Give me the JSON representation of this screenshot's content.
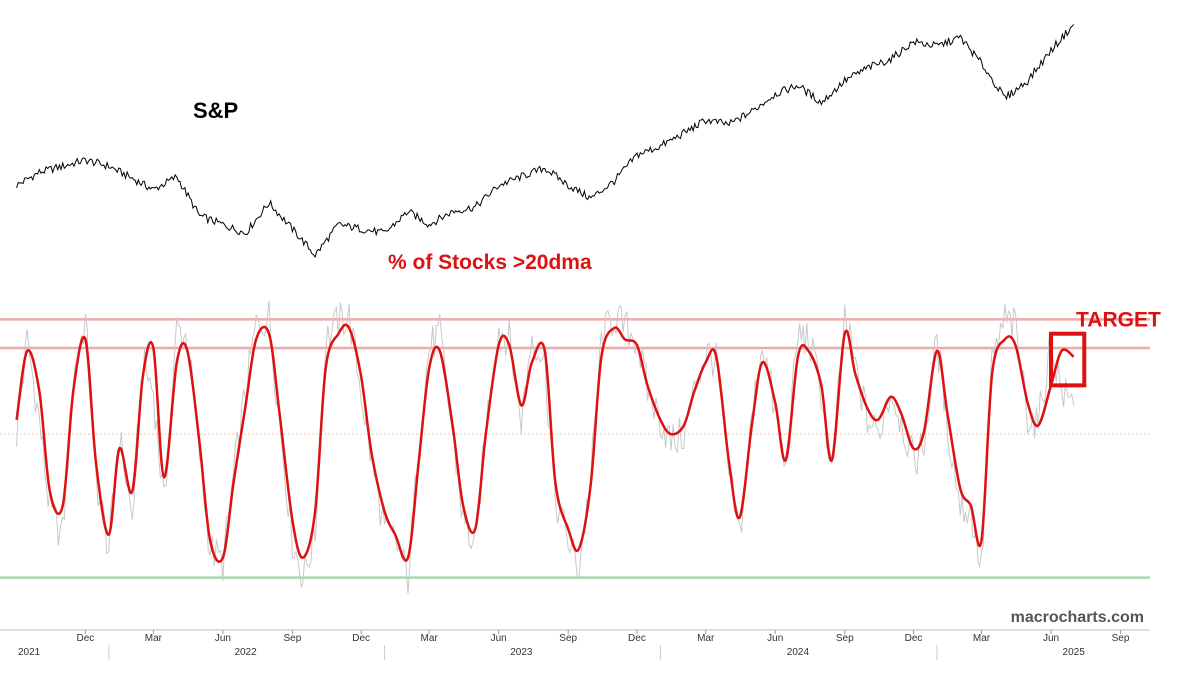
{
  "chart_data": {
    "type": "line",
    "top_panel": {
      "label": "S&P",
      "series": [
        {
          "name": "S&P",
          "color": "#000000",
          "x": [
            "2021-09-01",
            "2021-10-01",
            "2021-11-01",
            "2021-12-01",
            "2022-01-01",
            "2022-02-01",
            "2022-03-01",
            "2022-04-01",
            "2022-05-01",
            "2022-06-01",
            "2022-07-01",
            "2022-08-01",
            "2022-09-01",
            "2022-10-01",
            "2022-11-01",
            "2022-12-01",
            "2023-01-01",
            "2023-02-01",
            "2023-03-01",
            "2023-04-01",
            "2023-05-01",
            "2023-06-01",
            "2023-07-01",
            "2023-08-01",
            "2023-09-01",
            "2023-10-01",
            "2023-11-01",
            "2023-12-01",
            "2024-01-01",
            "2024-02-01",
            "2024-03-01",
            "2024-04-01",
            "2024-05-01",
            "2024-06-01",
            "2024-07-01",
            "2024-08-01",
            "2024-09-01",
            "2024-10-01",
            "2024-11-01",
            "2024-12-01",
            "2025-01-01",
            "2025-02-01",
            "2025-03-01",
            "2025-04-01",
            "2025-05-01",
            "2025-06-01",
            "2025-07-01"
          ],
          "values": [
            4400,
            4550,
            4620,
            4690,
            4620,
            4480,
            4350,
            4500,
            4050,
            3950,
            3850,
            4200,
            3900,
            3600,
            3950,
            3900,
            3850,
            4100,
            3950,
            4100,
            4150,
            4400,
            4500,
            4600,
            4400,
            4250,
            4450,
            4750,
            4850,
            5000,
            5150,
            5100,
            5250,
            5450,
            5550,
            5350,
            5600,
            5750,
            5850,
            6050,
            6000,
            6100,
            5800,
            5400,
            5600,
            5950,
            6250
          ]
        }
      ]
    },
    "bottom_panel": {
      "label": "% of Stocks >20dma",
      "reference_lines": [
        {
          "value": 95,
          "color": "#f0a8a8"
        },
        {
          "value": 85,
          "color": "#f0a8a8"
        },
        {
          "value": 55,
          "color": "#f6c6a0"
        },
        {
          "value": 5,
          "color": "#a8d8b0"
        }
      ],
      "series": [
        {
          "name": "% of Stocks >20dma (raw)",
          "color": "#c8c8c8",
          "x": [
            "2021-09-01",
            "2021-09-15",
            "2021-10-01",
            "2021-10-15",
            "2021-11-01",
            "2021-11-15",
            "2021-12-01",
            "2021-12-15",
            "2022-01-01",
            "2022-01-15",
            "2022-02-01",
            "2022-02-15",
            "2022-03-01",
            "2022-03-15",
            "2022-04-01",
            "2022-04-15",
            "2022-05-01",
            "2022-05-15",
            "2022-06-01",
            "2022-06-15",
            "2022-07-01",
            "2022-07-15",
            "2022-08-01",
            "2022-08-15",
            "2022-09-01",
            "2022-09-15",
            "2022-10-01",
            "2022-10-15",
            "2022-11-01",
            "2022-11-15",
            "2022-12-01",
            "2022-12-15",
            "2023-01-01",
            "2023-01-15",
            "2023-02-01",
            "2023-02-15",
            "2023-03-01",
            "2023-03-15",
            "2023-04-01",
            "2023-04-15",
            "2023-05-01",
            "2023-05-15",
            "2023-06-01",
            "2023-06-15",
            "2023-07-01",
            "2023-07-15",
            "2023-08-01",
            "2023-08-15",
            "2023-09-01",
            "2023-09-15",
            "2023-10-01",
            "2023-10-15",
            "2023-11-01",
            "2023-11-15",
            "2023-12-01",
            "2023-12-15",
            "2024-01-01",
            "2024-01-15",
            "2024-02-01",
            "2024-02-15",
            "2024-03-01",
            "2024-03-15",
            "2024-04-01",
            "2024-04-15",
            "2024-05-01",
            "2024-05-15",
            "2024-06-01",
            "2024-06-15",
            "2024-07-01",
            "2024-07-15",
            "2024-08-01",
            "2024-08-15",
            "2024-09-01",
            "2024-09-15",
            "2024-10-01",
            "2024-10-15",
            "2024-11-01",
            "2024-11-15",
            "2024-12-01",
            "2024-12-15",
            "2025-01-01",
            "2025-01-15",
            "2025-02-01",
            "2025-02-15",
            "2025-03-01",
            "2025-03-15",
            "2025-04-01",
            "2025-04-15",
            "2025-05-01",
            "2025-05-15",
            "2025-06-01",
            "2025-06-15",
            "2025-07-01"
          ],
          "values": [
            55,
            88,
            60,
            28,
            20,
            75,
            95,
            40,
            15,
            55,
            25,
            80,
            70,
            30,
            92,
            88,
            48,
            15,
            10,
            40,
            70,
            93,
            96,
            60,
            18,
            5,
            20,
            88,
            94,
            96,
            70,
            45,
            22,
            18,
            5,
            50,
            85,
            90,
            55,
            25,
            15,
            58,
            92,
            88,
            60,
            90,
            80,
            32,
            18,
            8,
            40,
            88,
            96,
            92,
            88,
            70,
            60,
            52,
            55,
            70,
            84,
            80,
            40,
            20,
            60,
            88,
            62,
            42,
            90,
            88,
            70,
            40,
            96,
            78,
            60,
            55,
            70,
            60,
            45,
            52,
            88,
            58,
            30,
            28,
            8,
            80,
            95,
            92,
            62,
            58,
            88,
            70,
            65
          ],
          "description": "Raw daily breadth reading shown as a thin grey line"
        },
        {
          "name": "% of Stocks >20dma (smoothed)",
          "color": "#dd1111",
          "x": [
            "2021-09-01",
            "2021-09-15",
            "2021-10-01",
            "2021-10-15",
            "2021-11-01",
            "2021-11-15",
            "2021-12-01",
            "2021-12-15",
            "2022-01-01",
            "2022-01-15",
            "2022-02-01",
            "2022-02-15",
            "2022-03-01",
            "2022-03-15",
            "2022-04-01",
            "2022-04-15",
            "2022-05-01",
            "2022-05-15",
            "2022-06-01",
            "2022-06-15",
            "2022-07-01",
            "2022-07-15",
            "2022-08-01",
            "2022-08-15",
            "2022-09-01",
            "2022-09-15",
            "2022-10-01",
            "2022-10-15",
            "2022-11-01",
            "2022-11-15",
            "2022-12-01",
            "2022-12-15",
            "2023-01-01",
            "2023-01-15",
            "2023-02-01",
            "2023-02-15",
            "2023-03-01",
            "2023-03-15",
            "2023-04-01",
            "2023-04-15",
            "2023-05-01",
            "2023-05-15",
            "2023-06-01",
            "2023-06-15",
            "2023-07-01",
            "2023-07-15",
            "2023-08-01",
            "2023-08-15",
            "2023-09-01",
            "2023-09-15",
            "2023-10-01",
            "2023-10-15",
            "2023-11-01",
            "2023-11-15",
            "2023-12-01",
            "2023-12-15",
            "2024-01-01",
            "2024-01-15",
            "2024-02-01",
            "2024-02-15",
            "2024-03-01",
            "2024-03-15",
            "2024-04-01",
            "2024-04-15",
            "2024-05-01",
            "2024-05-15",
            "2024-06-01",
            "2024-06-15",
            "2024-07-01",
            "2024-07-15",
            "2024-08-01",
            "2024-08-15",
            "2024-09-01",
            "2024-09-15",
            "2024-10-01",
            "2024-10-15",
            "2024-11-01",
            "2024-11-15",
            "2024-12-01",
            "2024-12-15",
            "2025-01-01",
            "2025-01-15",
            "2025-02-01",
            "2025-02-15",
            "2025-03-01",
            "2025-03-15",
            "2025-04-01",
            "2025-04-15",
            "2025-05-01",
            "2025-05-15",
            "2025-06-01",
            "2025-06-15",
            "2025-07-01"
          ],
          "values": [
            60,
            84,
            70,
            35,
            30,
            70,
            88,
            45,
            20,
            50,
            35,
            75,
            85,
            40,
            80,
            84,
            52,
            18,
            12,
            38,
            65,
            88,
            90,
            62,
            25,
            12,
            28,
            78,
            90,
            92,
            75,
            48,
            28,
            20,
            12,
            45,
            78,
            84,
            58,
            30,
            22,
            55,
            86,
            86,
            65,
            80,
            84,
            38,
            22,
            15,
            38,
            82,
            92,
            88,
            86,
            72,
            60,
            55,
            58,
            70,
            80,
            82,
            45,
            26,
            58,
            80,
            66,
            46,
            82,
            84,
            72,
            46,
            90,
            76,
            64,
            60,
            68,
            62,
            50,
            56,
            84,
            62,
            36,
            30,
            18,
            76,
            88,
            86,
            66,
            58,
            72,
            84,
            82
          ]
        }
      ],
      "annotation": {
        "label": "TARGET",
        "color": "#dd1111",
        "x_range": [
          "2025-06-01",
          "2025-07-15"
        ],
        "y_range": [
          72,
          90
        ]
      }
    },
    "x_axis": {
      "month_ticks": [
        "Dec",
        "Mar",
        "Jun",
        "Sep",
        "Dec",
        "Mar",
        "Jun",
        "Sep",
        "Dec",
        "Mar",
        "Jun",
        "Sep",
        "Dec",
        "Mar",
        "Jun",
        "Sep"
      ],
      "year_ticks": [
        "2021",
        "2022",
        "2023",
        "2024",
        "2025"
      ]
    },
    "grid": false,
    "legend": "none"
  },
  "watermark": "macrocharts.com"
}
